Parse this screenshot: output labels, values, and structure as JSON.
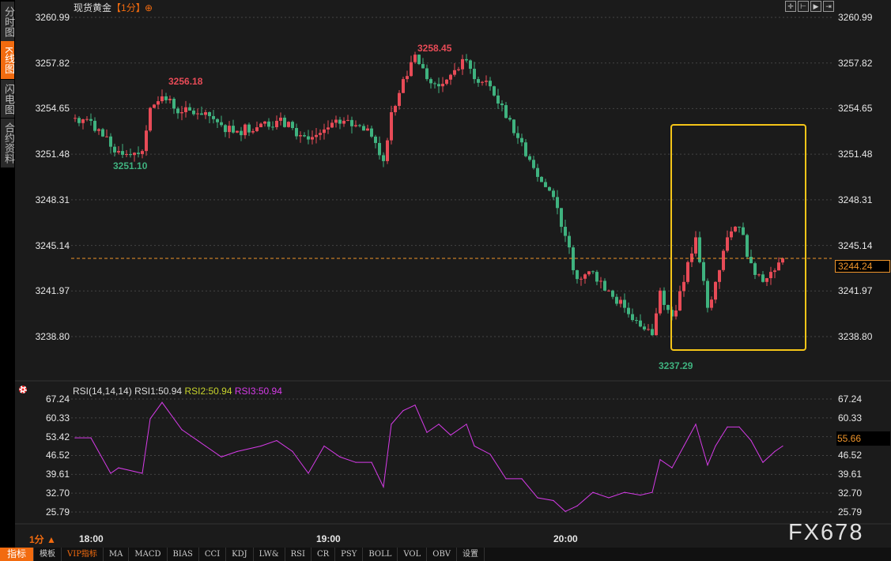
{
  "sidebar": {
    "tabs": [
      {
        "label": "分时图",
        "active": false
      },
      {
        "label": "K线图",
        "active": true
      },
      {
        "label": "闪电图",
        "active": false
      },
      {
        "label": "合约资料",
        "active": false
      }
    ]
  },
  "header": {
    "title": "现货黄金",
    "period": "【1分】",
    "target_icon": "crosshair-circle-icon"
  },
  "toolbar_icons": [
    "crosshair-icon",
    "zoom-left-icon",
    "play-icon",
    "move-right-icon"
  ],
  "chart_data": [
    {
      "type": "candlestick",
      "title": "现货黄金【1分】",
      "yticks": [
        "3260.99",
        "3257.82",
        "3254.65",
        "3251.48",
        "3248.31",
        "3245.14",
        "3241.97",
        "3238.80"
      ],
      "ylim": [
        3238.8,
        3260.99
      ],
      "xticks": [
        "18:00",
        "19:00",
        "20:00"
      ],
      "last_price": "3244.24",
      "last_price_color": "#f0952a",
      "annotations": [
        {
          "label": "3256.18",
          "type": "high",
          "color": "#e84b57"
        },
        {
          "label": "3251.10",
          "type": "low",
          "color": "#3fb27f"
        },
        {
          "label": "3258.45",
          "type": "high",
          "color": "#e84b57"
        },
        {
          "label": "3237.29",
          "type": "low",
          "color": "#3fb27f"
        }
      ],
      "x": [
        "17:56",
        "18:00",
        "18:05",
        "18:07",
        "18:13",
        "18:15",
        "18:18",
        "18:23",
        "18:29",
        "18:33",
        "18:37",
        "18:43",
        "18:47",
        "18:51",
        "18:55",
        "18:59",
        "19:03",
        "19:07",
        "19:11",
        "19:14",
        "19:16",
        "19:19",
        "19:22",
        "19:25",
        "19:28",
        "19:31",
        "19:35",
        "19:37",
        "19:41",
        "19:45",
        "19:49",
        "19:53",
        "19:57",
        "20:00",
        "20:03",
        "20:07",
        "20:11",
        "20:15",
        "20:19",
        "20:22",
        "20:24",
        "20:27",
        "20:30",
        "20:33",
        "20:36",
        "20:38",
        "20:41",
        "20:44",
        "20:47",
        "20:50",
        "20:53",
        "20:55"
      ],
      "close": [
        3254.0,
        3253.8,
        3252.0,
        3251.7,
        3251.7,
        3254.7,
        3255.5,
        3254.4,
        3254.4,
        3253.5,
        3253.1,
        3253.6,
        3253.8,
        3253.3,
        3252.5,
        3253.2,
        3253.6,
        3253.5,
        3252.7,
        3251.0,
        3254.4,
        3256.7,
        3258.4,
        3256.7,
        3256.2,
        3257.0,
        3258.0,
        3256.7,
        3256.2,
        3254.0,
        3252.3,
        3249.9,
        3248.5,
        3245.8,
        3242.8,
        3243.3,
        3242.0,
        3240.8,
        3239.5,
        3238.9,
        3242.0,
        3240.2,
        3242.6,
        3245.7,
        3240.8,
        3242.6,
        3245.7,
        3246.4,
        3243.9,
        3242.6,
        3243.4,
        3244.24
      ],
      "up_color": "#e84b57",
      "down_color": "#3fb27f",
      "highlight_box_color": "#f5c518"
    },
    {
      "type": "line",
      "title": "RSI(14,14,14)",
      "legend": [
        {
          "label": "RSI1:50.94",
          "color": "#dddddd"
        },
        {
          "label": "RSI2:50.94",
          "color": "#c8d42c"
        },
        {
          "label": "RSI3:50.94",
          "color": "#d63be8"
        }
      ],
      "yticks": [
        "67.24",
        "60.33",
        "53.42",
        "46.52",
        "39.61",
        "32.70",
        "25.79"
      ],
      "ylim": [
        25.79,
        67.24
      ],
      "current": "55.66",
      "series": [
        {
          "name": "RSI3",
          "color": "#d63be8",
          "values": [
            53,
            53,
            40,
            42,
            40,
            60,
            66,
            56,
            50,
            46,
            48,
            50,
            52,
            48,
            40,
            50,
            46,
            44,
            44,
            35,
            58,
            63,
            65,
            55,
            58,
            54,
            58,
            50,
            47,
            38,
            38,
            31,
            30,
            26,
            28,
            33,
            31,
            33,
            32,
            33,
            45,
            42,
            50,
            58,
            43,
            50,
            57,
            57,
            52,
            44,
            48,
            50
          ]
        }
      ]
    }
  ],
  "footer": {
    "period": "1分 ▲",
    "watermark": "FX678",
    "tabs": [
      {
        "label": "指标",
        "active": true
      },
      {
        "label": "模板"
      },
      {
        "label": "VIP指标",
        "vip": true
      },
      {
        "label": "MA"
      },
      {
        "label": "MACD"
      },
      {
        "label": "BIAS"
      },
      {
        "label": "CCI"
      },
      {
        "label": "KDJ"
      },
      {
        "label": "LW&"
      },
      {
        "label": "RSI"
      },
      {
        "label": "CR"
      },
      {
        "label": "PSY"
      },
      {
        "label": "BOLL"
      },
      {
        "label": "VOL"
      },
      {
        "label": "OBV"
      },
      {
        "label": "设置"
      }
    ]
  }
}
